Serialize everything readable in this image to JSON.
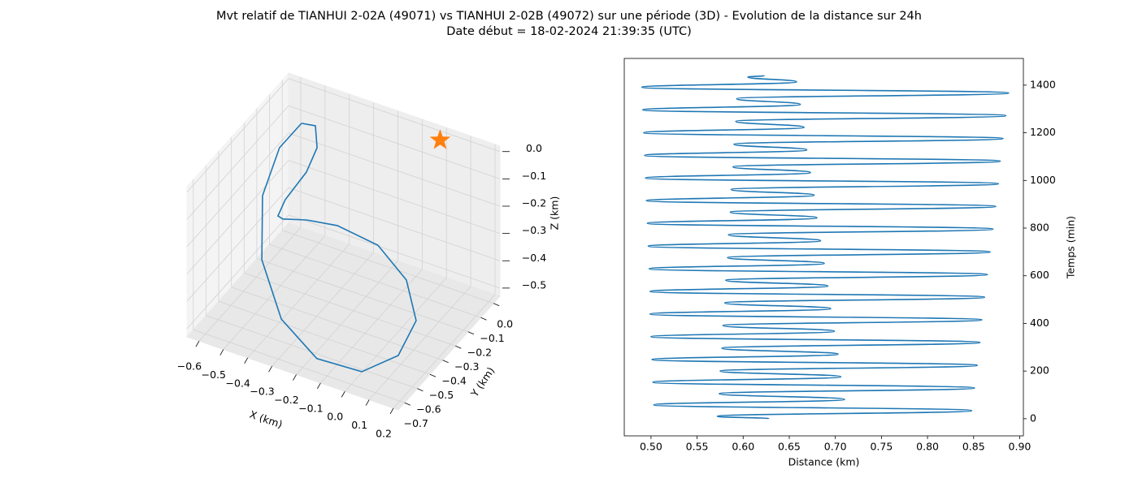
{
  "title": "Mvt relatif de TIANHUI 2-02A (49071) vs TIANHUI 2-02B (49072) sur une période (3D) - Evolution de la distance sur 24h",
  "subtitle": "Date début = 18-02-2024 21:39:35 (UTC)",
  "chart_data": [
    {
      "type": "line3d",
      "xlabel": "X (km)",
      "ylabel": "Y (km)",
      "zlabel": "Z (km)",
      "xlim": [
        -0.65,
        0.22
      ],
      "ylim": [
        -0.75,
        0.05
      ],
      "zlim": [
        -0.53,
        0.02
      ],
      "xticks": [
        {
          "value": -0.6,
          "label": "−0.6"
        },
        {
          "value": -0.5,
          "label": "−0.5"
        },
        {
          "value": -0.4,
          "label": "−0.4"
        },
        {
          "value": -0.3,
          "label": "−0.3"
        },
        {
          "value": -0.2,
          "label": "−0.2"
        },
        {
          "value": -0.1,
          "label": "−0.1"
        },
        {
          "value": 0,
          "label": "0.0"
        },
        0.1,
        0.2
      ],
      "yticks": [
        {
          "value": -0.7,
          "label": "−0.7"
        },
        {
          "value": -0.6,
          "label": "−0.6"
        },
        {
          "value": -0.5,
          "label": "−0.5"
        },
        {
          "value": -0.4,
          "label": "−0.4"
        },
        {
          "value": -0.3,
          "label": "−0.3"
        },
        {
          "value": -0.2,
          "label": "−0.2"
        },
        {
          "value": -0.1,
          "label": "−0.1"
        },
        {
          "value": 0,
          "label": "0.0"
        }
      ],
      "zticks": [
        {
          "value": -0.5,
          "label": "−0.5"
        },
        {
          "value": -0.4,
          "label": "−0.4"
        },
        {
          "value": -0.3,
          "label": "−0.3"
        },
        {
          "value": -0.2,
          "label": "−0.2"
        },
        {
          "value": -0.1,
          "label": "−0.1"
        },
        {
          "value": 0,
          "label": "0.0"
        }
      ],
      "grid": true,
      "series": [
        {
          "color": "#1f77b4",
          "marker": "line",
          "x": [
            -0.471,
            -0.435,
            -0.428,
            -0.472,
            -0.58,
            -0.631,
            -0.59,
            -0.451,
            -0.282,
            -0.073,
            0.086,
            0.168,
            0.136,
            0.007,
            -0.178,
            -0.387,
            -0.53,
            -0.569,
            -0.52,
            -0.471
          ],
          "y": [
            -0.19,
            -0.15,
            -0.15,
            -0.15,
            -0.11,
            -0.07,
            -0.11,
            -0.19,
            -0.27,
            -0.35,
            -0.43,
            -0.51,
            -0.59,
            -0.63,
            -0.63,
            -0.51,
            -0.39,
            -0.31,
            -0.27,
            -0.19
          ],
          "z": [
            0.016,
            -0.003,
            -0.081,
            -0.184,
            -0.339,
            -0.435,
            -0.413,
            -0.332,
            -0.259,
            -0.225,
            -0.262,
            -0.344,
            -0.44,
            -0.518,
            -0.527,
            -0.509,
            -0.398,
            -0.217,
            -0.047,
            0.016
          ]
        },
        {
          "color": "#ff7f0e",
          "marker": "star",
          "x": [
            0
          ],
          "y": [
            0
          ],
          "z": [
            0
          ]
        }
      ]
    },
    {
      "type": "line",
      "xlabel": "Distance (km)",
      "ylabel": "Temps (min)",
      "yaxis_position": "right",
      "xlim": [
        0.471,
        0.904
      ],
      "ylim": [
        -72,
        1512
      ],
      "xticks": [
        {
          "value": 0.5,
          "label": "0.50"
        },
        {
          "value": 0.55,
          "label": "0.55"
        },
        {
          "value": 0.6,
          "label": "0.60"
        },
        {
          "value": 0.65,
          "label": "0.65"
        },
        {
          "value": 0.7,
          "label": "0.70"
        },
        {
          "value": 0.75,
          "label": "0.75"
        },
        {
          "value": 0.8,
          "label": "0.80"
        },
        {
          "value": 0.85,
          "label": "0.85"
        },
        {
          "value": 0.9,
          "label": "0.90"
        }
      ],
      "yticks": [
        0,
        200,
        400,
        600,
        800,
        1000,
        1200,
        1400
      ],
      "x": [
        0.628,
        0.572,
        0.848,
        0.503,
        0.71,
        0.574,
        0.851,
        0.502,
        0.706,
        0.575,
        0.854,
        0.501,
        0.703,
        0.577,
        0.857,
        0.5,
        0.699,
        0.578,
        0.859,
        0.499,
        0.695,
        0.58,
        0.862,
        0.499,
        0.692,
        0.581,
        0.865,
        0.498,
        0.688,
        0.583,
        0.868,
        0.497,
        0.684,
        0.584,
        0.871,
        0.496,
        0.68,
        0.586,
        0.874,
        0.495,
        0.677,
        0.587,
        0.877,
        0.494,
        0.673,
        0.589,
        0.879,
        0.493,
        0.669,
        0.59,
        0.882,
        0.492,
        0.666,
        0.592,
        0.885,
        0.491,
        0.662,
        0.593,
        0.888,
        0.49,
        0.658,
        0.605,
        0.623
      ],
      "series": [
        {
          "color": "#1f77b4",
          "values": [
            0,
            10,
            34,
            58,
            81,
            105,
            129,
            153,
            176,
            200,
            224,
            248,
            271,
            296,
            320,
            344,
            367,
            391,
            415,
            439,
            462,
            486,
            510,
            534,
            557,
            581,
            605,
            629,
            652,
            676,
            700,
            724,
            747,
            772,
            796,
            820,
            843,
            867,
            891,
            915,
            938,
            962,
            986,
            1010,
            1033,
            1057,
            1081,
            1105,
            1128,
            1152,
            1176,
            1200,
            1223,
            1248,
            1272,
            1296,
            1319,
            1343,
            1367,
            1391,
            1414,
            1434,
            1440
          ]
        }
      ]
    }
  ]
}
